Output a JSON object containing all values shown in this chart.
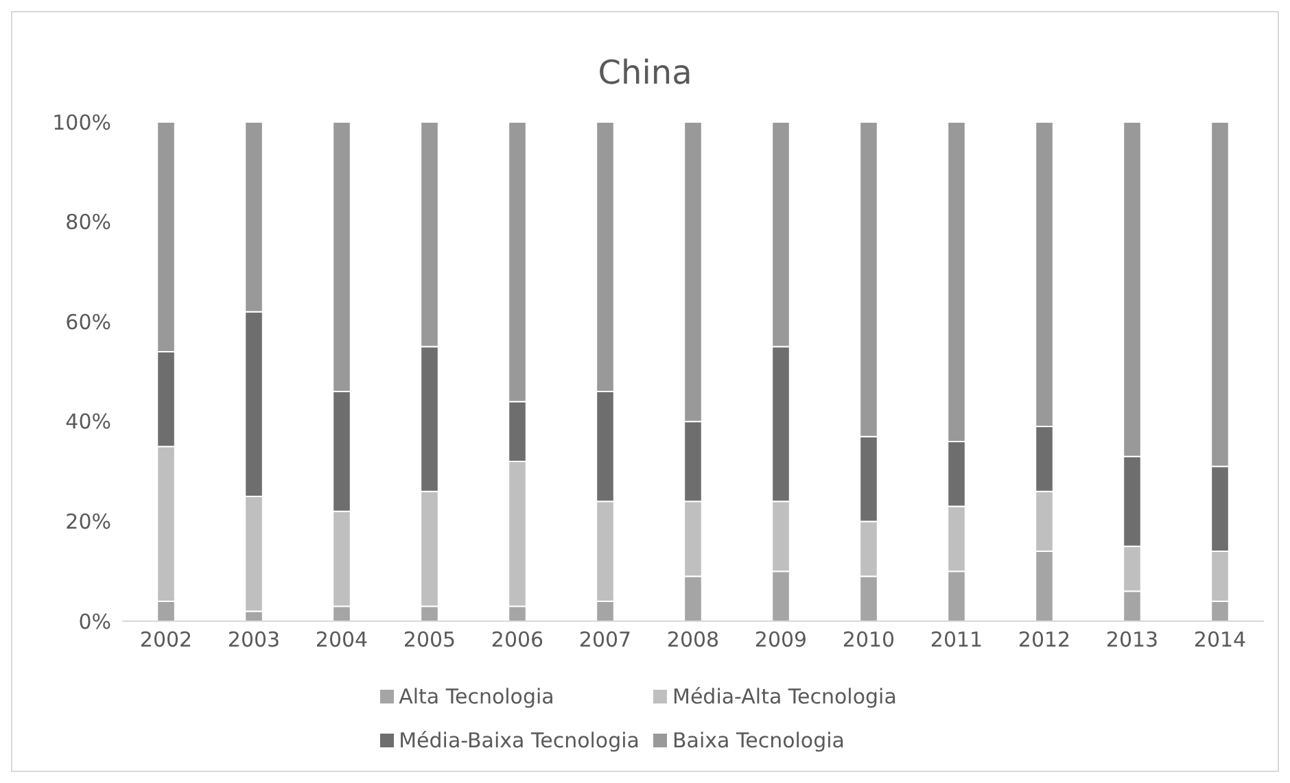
{
  "chart_data": {
    "type": "bar",
    "title": "China",
    "stacked": true,
    "legend": "bottom",
    "grid": false,
    "categories": [
      "2002",
      "2003",
      "2004",
      "2005",
      "2006",
      "2007",
      "2008",
      "2009",
      "2010",
      "2011",
      "2012",
      "2013",
      "2014"
    ],
    "ylim": [
      0,
      100
    ],
    "yticks": [
      {
        "value": 0,
        "label": "0%"
      },
      {
        "value": 20,
        "label": "20%"
      },
      {
        "value": 40,
        "label": "40%"
      },
      {
        "value": 60,
        "label": "60%"
      },
      {
        "value": 80,
        "label": "80%"
      },
      {
        "value": 100,
        "label": "100%"
      }
    ],
    "series": [
      {
        "name": "Alta Tecnologia",
        "color": "#a5a5a5",
        "values": [
          4,
          2,
          3,
          3,
          3,
          4,
          9,
          10,
          9,
          10,
          14,
          6,
          4
        ]
      },
      {
        "name": "Média-Alta Tecnologia",
        "color": "#bfbfbf",
        "values": [
          31,
          23,
          19,
          23,
          29,
          20,
          15,
          14,
          11,
          13,
          12,
          9,
          10
        ]
      },
      {
        "name": "Média-Baixa Tecnologia",
        "color": "#6e6e6e",
        "values": [
          19,
          37,
          24,
          29,
          12,
          22,
          16,
          31,
          17,
          13,
          13,
          18,
          17
        ]
      },
      {
        "name": "Baixa Tecnologia",
        "color": "#999999",
        "values": [
          46,
          38,
          54,
          45,
          56,
          54,
          60,
          45,
          63,
          64,
          61,
          67,
          69
        ]
      }
    ]
  }
}
